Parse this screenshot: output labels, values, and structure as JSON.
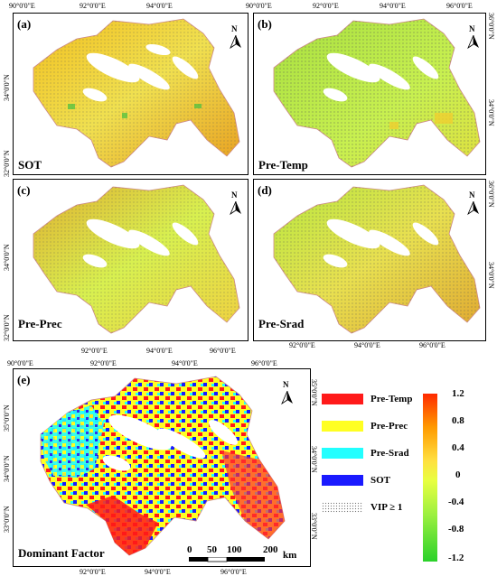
{
  "panels": [
    {
      "id": "a",
      "label": "(a)",
      "name": "SOT"
    },
    {
      "id": "b",
      "label": "(b)",
      "name": "Pre-Temp"
    },
    {
      "id": "c",
      "label": "(c)",
      "name": "Pre-Prec"
    },
    {
      "id": "d",
      "label": "(d)",
      "name": "Pre-Srad"
    },
    {
      "id": "e",
      "label": "(e)",
      "name": "Dominant Factor"
    }
  ],
  "north_label": "N",
  "coords": {
    "lon_90": "90°0'0\"E",
    "lon_92": "92°0'0\"E",
    "lon_94": "94°0'0\"E",
    "lon_96": "96°0'0\"E",
    "lat_32": "32°0'0\"N",
    "lat_33": "33°0'0\"N",
    "lat_34": "34°0'0\"N",
    "lat_35": "35°0'0\"N",
    "lat_36": "36°0'0\"N"
  },
  "legend": {
    "items": [
      {
        "label": "Pre-Temp",
        "color": "#ff1a1a"
      },
      {
        "label": "Pre-Prec",
        "color": "#ffff22"
      },
      {
        "label": "Pre-Srad",
        "color": "#22ffff"
      },
      {
        "label": "SOT",
        "color": "#1a1aff"
      },
      {
        "label": "VIP ≥ 1",
        "color": "pattern"
      }
    ]
  },
  "colorbar": {
    "ticks": [
      "1.2",
      "0.8",
      "0.4",
      "0",
      "-0.4",
      "-0.8",
      "-1.2"
    ],
    "colors": [
      "#ff2a00",
      "#ff9a00",
      "#ffe040",
      "#e8ff40",
      "#9cf040",
      "#2ad12a"
    ]
  },
  "scalebar": {
    "labels": [
      "0",
      "50",
      "100",
      "200"
    ],
    "unit": "km"
  }
}
